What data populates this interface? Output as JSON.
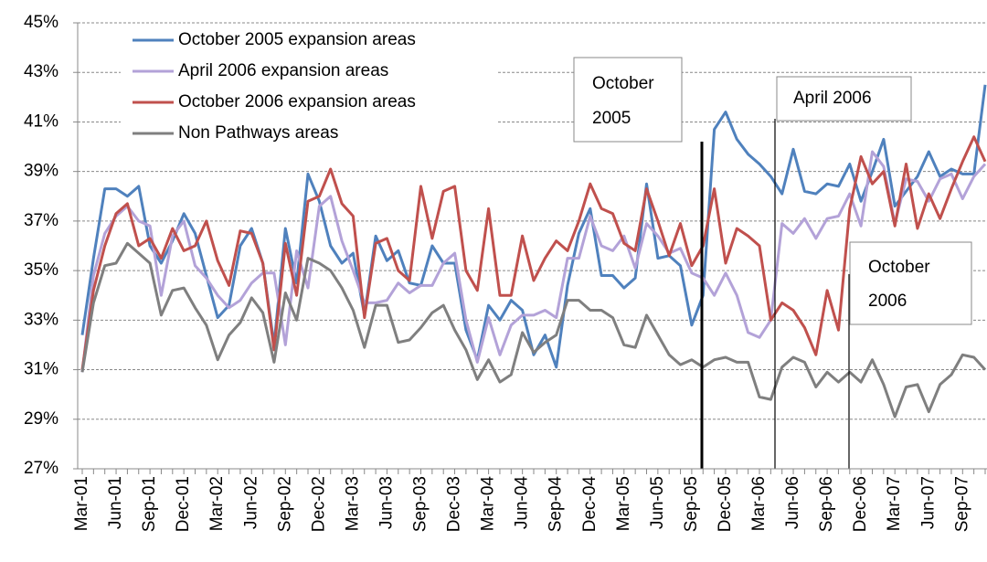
{
  "chart_data": {
    "type": "line",
    "categories": [
      "Mar-01",
      null,
      null,
      "Jun-01",
      null,
      null,
      "Sep-01",
      null,
      null,
      "Dec-01",
      null,
      null,
      "Mar-02",
      null,
      null,
      "Jun-02",
      null,
      null,
      "Sep-02",
      null,
      null,
      "Dec-02",
      null,
      null,
      "Mar-03",
      null,
      null,
      "Jun-03",
      null,
      null,
      "Sep-03",
      null,
      null,
      "Dec-03",
      null,
      null,
      "Mar-04",
      null,
      null,
      "Jun-04",
      null,
      null,
      "Sep-04",
      null,
      null,
      "Dec-04",
      null,
      null,
      "Mar-05",
      null,
      null,
      "Jun-05",
      null,
      null,
      "Sep-05",
      null,
      null,
      "Dec-05",
      null,
      null,
      "Mar-06",
      null,
      null,
      "Jun-06",
      null,
      null,
      "Sep-06",
      null,
      null,
      "Dec-06",
      null,
      null,
      "Mar-07",
      null,
      null,
      "Jun-07",
      null,
      null,
      "Sep-07",
      null,
      null
    ],
    "series": [
      {
        "name": "October 2005 expansion areas",
        "color": "#4f81bd",
        "values": [
          32.4,
          35.5,
          38.3,
          38.3,
          38.0,
          38.4,
          36.0,
          35.3,
          36.2,
          37.3,
          36.5,
          34.8,
          33.1,
          33.6,
          36.0,
          36.7,
          35.3,
          32.0,
          36.7,
          34.5,
          38.9,
          37.8,
          36.0,
          35.3,
          35.7,
          33.2,
          36.4,
          35.4,
          35.8,
          34.5,
          34.4,
          36.0,
          35.3,
          35.3,
          32.6,
          31.4,
          33.6,
          33.0,
          33.8,
          33.4,
          31.6,
          32.4,
          31.1,
          34.4,
          36.5,
          37.5,
          34.8,
          34.8,
          34.3,
          34.7,
          38.5,
          35.5,
          35.6,
          35.2,
          32.8,
          34.0,
          40.7,
          41.4,
          40.3,
          39.7,
          39.3,
          38.8,
          38.1,
          39.9,
          38.2,
          38.1,
          38.5,
          38.4,
          39.3,
          37.8,
          39.0,
          40.3,
          37.6,
          38.2,
          38.8,
          39.8,
          38.8,
          39.1,
          38.9,
          38.9,
          42.5
        ]
      },
      {
        "name": "April 2006 expansion areas",
        "color": "#b3a2d8",
        "values": [
          30.9,
          34.8,
          36.5,
          37.2,
          37.6,
          37.0,
          36.8,
          34.0,
          36.4,
          37.0,
          35.2,
          34.7,
          34.0,
          33.5,
          33.8,
          34.5,
          34.9,
          34.9,
          32.0,
          35.8,
          34.3,
          37.6,
          38.0,
          36.2,
          35.0,
          33.7,
          33.7,
          33.8,
          34.5,
          34.1,
          34.4,
          34.4,
          35.3,
          35.7,
          33.0,
          31.3,
          33.1,
          31.6,
          32.8,
          33.2,
          33.2,
          33.4,
          33.1,
          35.5,
          35.5,
          37.2,
          36.0,
          35.8,
          36.4,
          35.1,
          36.9,
          36.4,
          35.7,
          35.9,
          34.9,
          34.7,
          34.0,
          34.9,
          34.0,
          32.5,
          32.3,
          33.0,
          36.9,
          36.5,
          37.1,
          36.3,
          37.1,
          37.2,
          38.1,
          36.8,
          39.8,
          39.2,
          36.9,
          38.7,
          38.6,
          37.8,
          38.7,
          38.9,
          37.9,
          38.8,
          39.3
        ]
      },
      {
        "name": "October 2006 expansion areas",
        "color": "#c0504d",
        "values": [
          31.0,
          34.2,
          36.0,
          37.3,
          37.7,
          36.0,
          36.3,
          35.5,
          36.7,
          35.8,
          36.0,
          37.0,
          35.4,
          34.4,
          36.6,
          36.5,
          35.3,
          31.8,
          36.1,
          34.0,
          37.8,
          38.0,
          39.1,
          37.7,
          37.2,
          33.1,
          36.1,
          36.3,
          35.0,
          34.6,
          38.4,
          36.3,
          38.2,
          38.4,
          35.0,
          34.2,
          37.5,
          34.0,
          34.0,
          36.4,
          34.6,
          35.5,
          36.2,
          35.8,
          37.0,
          38.5,
          37.5,
          37.3,
          36.1,
          35.8,
          38.3,
          37.0,
          35.6,
          36.9,
          35.2,
          36.0,
          38.3,
          35.3,
          36.7,
          36.4,
          36.0,
          33.0,
          33.7,
          33.4,
          32.7,
          31.6,
          34.2,
          32.6,
          37.5,
          39.6,
          38.5,
          39.0,
          36.8,
          39.3,
          36.7,
          38.1,
          37.1,
          38.3,
          39.4,
          40.4,
          39.4
        ]
      },
      {
        "name": "Non Pathways areas",
        "color": "#7f7f7f",
        "values": [
          30.9,
          33.7,
          35.2,
          35.3,
          36.1,
          35.7,
          35.3,
          33.2,
          34.2,
          34.3,
          33.5,
          32.8,
          31.4,
          32.4,
          32.9,
          33.9,
          33.3,
          31.3,
          34.1,
          33.0,
          35.5,
          35.3,
          35.0,
          34.3,
          33.4,
          31.9,
          33.6,
          33.6,
          32.1,
          32.2,
          32.7,
          33.3,
          33.6,
          32.6,
          31.8,
          30.6,
          31.4,
          30.5,
          30.8,
          32.5,
          31.7,
          32.1,
          32.4,
          33.8,
          33.8,
          33.4,
          33.4,
          33.1,
          32.0,
          31.9,
          33.2,
          32.4,
          31.6,
          31.2,
          31.4,
          31.1,
          31.4,
          31.5,
          31.3,
          31.3,
          29.9,
          29.8,
          31.1,
          31.5,
          31.3,
          30.3,
          30.9,
          30.5,
          30.9,
          30.5,
          31.4,
          30.4,
          29.1,
          30.3,
          30.4,
          29.3,
          30.4,
          30.8,
          31.6,
          31.5,
          31.0
        ]
      }
    ],
    "ylim": [
      27,
      45
    ],
    "yticks": [
      {
        "value": 27,
        "label": "27%"
      },
      {
        "value": 29,
        "label": "29%"
      },
      {
        "value": 31,
        "label": "31%"
      },
      {
        "value": 33,
        "label": "33%"
      },
      {
        "value": 35,
        "label": "35%"
      },
      {
        "value": 37,
        "label": "37%"
      },
      {
        "value": 39,
        "label": "39%"
      },
      {
        "value": 41,
        "label": "41%"
      },
      {
        "value": 43,
        "label": "43%"
      },
      {
        "value": 45,
        "label": "45%"
      }
    ],
    "grid": true,
    "annotations": [
      [
        "October",
        "2005"
      ],
      [
        "April 2006"
      ],
      [
        "October",
        "2006"
      ]
    ]
  }
}
